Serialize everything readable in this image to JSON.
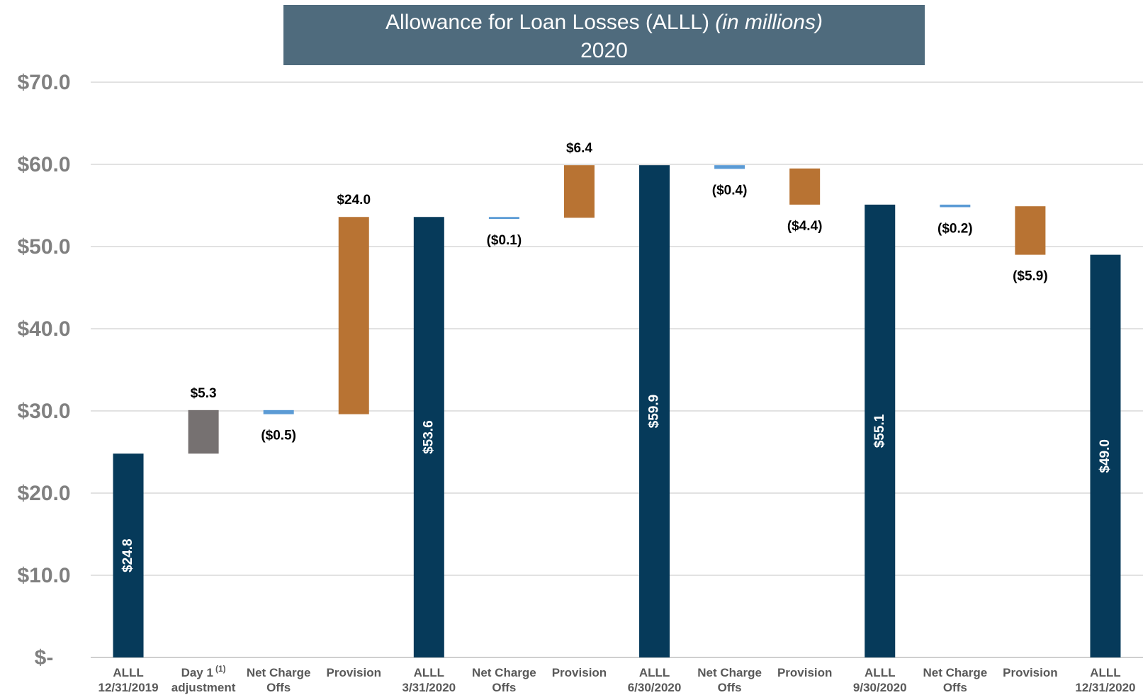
{
  "title": {
    "main": "Allowance for Loan Losses (ALLL) ",
    "italic": "(in millions)",
    "year": "2020"
  },
  "colors": {
    "total": "#063a5a",
    "adjustment": "#767171",
    "charge_offs": "#5b9bd5",
    "provision": "#b87333",
    "title_bg": "#4f6b7d",
    "grid": "#d9d9d9"
  },
  "chart_data": {
    "type": "bar",
    "subtype": "waterfall",
    "title": "Allowance for Loan Losses (ALLL) (in millions) 2020",
    "ylim": [
      0,
      70
    ],
    "y_ticks": [
      {
        "value": 0,
        "label": "$-"
      },
      {
        "value": 10,
        "label": "$10.0"
      },
      {
        "value": 20,
        "label": "$20.0"
      },
      {
        "value": 30,
        "label": "$30.0"
      },
      {
        "value": 40,
        "label": "$40.0"
      },
      {
        "value": 50,
        "label": "$50.0"
      },
      {
        "value": 60,
        "label": "$60.0"
      },
      {
        "value": 70,
        "label": "$70.0"
      }
    ],
    "grid": true,
    "legend": "none",
    "bars": [
      {
        "category": [
          "ALLL",
          "12/31/2019"
        ],
        "kind": "total",
        "start": 0,
        "end": 24.8,
        "label": "$24.8",
        "label_pos": "inside"
      },
      {
        "category": [
          "Day 1",
          "adjustment"
        ],
        "superscript": "(1)",
        "kind": "adjustment",
        "start": 24.8,
        "end": 30.1,
        "label": "$5.3",
        "label_pos": "above"
      },
      {
        "category": [
          "Net Charge",
          "Offs"
        ],
        "kind": "charge_offs",
        "start": 30.1,
        "end": 29.6,
        "label": "($0.5)",
        "label_pos": "below"
      },
      {
        "category": [
          "Provision",
          ""
        ],
        "kind": "provision",
        "start": 29.6,
        "end": 53.6,
        "label": "$24.0",
        "label_pos": "above"
      },
      {
        "category": [
          "ALLL",
          "3/31/2020"
        ],
        "kind": "total",
        "start": 0,
        "end": 53.6,
        "label": "$53.6",
        "label_pos": "inside"
      },
      {
        "category": [
          "Net Charge",
          "Offs"
        ],
        "kind": "charge_offs",
        "start": 53.6,
        "end": 53.5,
        "label": "($0.1)",
        "label_pos": "below"
      },
      {
        "category": [
          "Provision",
          ""
        ],
        "kind": "provision",
        "start": 53.5,
        "end": 59.9,
        "label": "$6.4",
        "label_pos": "above"
      },
      {
        "category": [
          "ALLL",
          "6/30/2020"
        ],
        "kind": "total",
        "start": 0,
        "end": 59.9,
        "label": "$59.9",
        "label_pos": "inside"
      },
      {
        "category": [
          "Net Charge",
          "Offs"
        ],
        "kind": "charge_offs",
        "start": 59.9,
        "end": 59.5,
        "label": "($0.4)",
        "label_pos": "below"
      },
      {
        "category": [
          "Provision",
          ""
        ],
        "kind": "provision",
        "start": 59.5,
        "end": 55.1,
        "label": "($4.4)",
        "label_pos": "below"
      },
      {
        "category": [
          "ALLL",
          "9/30/2020"
        ],
        "kind": "total",
        "start": 0,
        "end": 55.1,
        "label": "$55.1",
        "label_pos": "inside"
      },
      {
        "category": [
          "Net Charge",
          "Offs"
        ],
        "kind": "charge_offs",
        "start": 55.1,
        "end": 54.9,
        "label": "($0.2)",
        "label_pos": "below"
      },
      {
        "category": [
          "Provision",
          ""
        ],
        "kind": "provision",
        "start": 54.9,
        "end": 49.0,
        "label": "($5.9)",
        "label_pos": "below"
      },
      {
        "category": [
          "ALLL",
          "12/31/2020"
        ],
        "kind": "total",
        "start": 0,
        "end": 49.0,
        "label": "$49.0",
        "label_pos": "inside"
      }
    ]
  }
}
